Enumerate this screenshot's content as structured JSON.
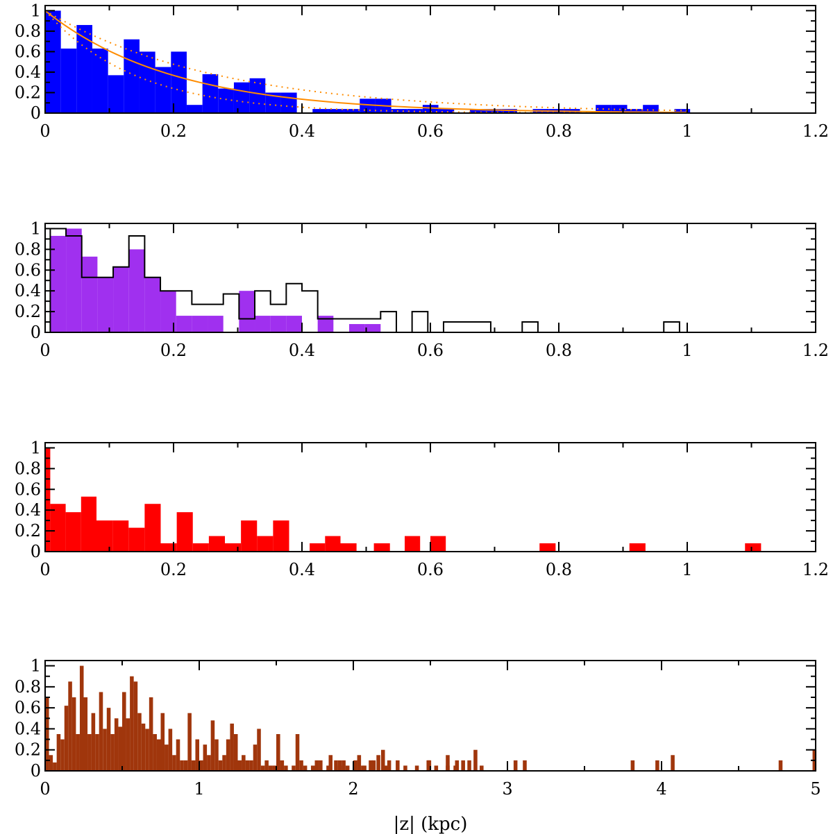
{
  "chart_data": [
    {
      "type": "bar",
      "panel": "panel-1",
      "xlim": [
        0,
        1.2
      ],
      "ylim": [
        0,
        1.05
      ],
      "xticks": [
        0,
        0.2,
        0.4,
        0.6,
        0.8,
        1,
        1.2
      ],
      "xticklabels": [
        "0",
        "0.2",
        "0.4",
        "0.6",
        "0.8",
        "1",
        "1.2"
      ],
      "yticks": [
        0,
        0.2,
        0.4,
        0.6,
        0.8,
        1
      ],
      "yticklabels": [
        "0",
        "0.2",
        "0.4",
        "0.6",
        "0.8",
        "1"
      ],
      "xlabel": "",
      "bin_width": 0.0245,
      "filled_series": {
        "name": "blue histogram",
        "color": "#0000ff",
        "x_start": 0,
        "values": [
          1.0,
          0.63,
          0.86,
          0.63,
          0.37,
          0.72,
          0.6,
          0.45,
          0.6,
          0.08,
          0.38,
          0.24,
          0.3,
          0.34,
          0.2,
          0.2,
          0.0,
          0.04,
          0.04,
          0.04,
          0.14,
          0.14,
          0.04,
          0.04,
          0.08,
          0.04,
          0.0,
          0.04,
          0.04,
          0.04,
          0.0,
          0.04,
          0.04,
          0.04,
          0.0,
          0.08,
          0.08,
          0.04,
          0.08,
          0.0,
          0.04
        ]
      },
      "curves": [
        {
          "name": "exponential fit",
          "style": "solid",
          "color": "#ff8c00",
          "x_range": [
            0,
            1
          ],
          "y0": 1.0,
          "scale_height": 0.2
        },
        {
          "name": "upper bound",
          "style": "dotted",
          "color": "#ff8c00",
          "x_range": [
            0,
            1
          ],
          "y0": 1.0,
          "scale_height": 0.27
        },
        {
          "name": "lower bound",
          "style": "dotted",
          "color": "#ff8c00",
          "x_range": [
            0,
            1
          ],
          "y0": 1.0,
          "scale_height": 0.14
        }
      ]
    },
    {
      "type": "bar",
      "panel": "panel-2",
      "xlim": [
        0,
        1.2
      ],
      "ylim": [
        0,
        1.05
      ],
      "xticks": [
        0,
        0.2,
        0.4,
        0.6,
        0.8,
        1,
        1.2
      ],
      "xticklabels": [
        "0",
        "0.2",
        "0.4",
        "0.6",
        "0.8",
        "1",
        "1.2"
      ],
      "yticks": [
        0,
        0.2,
        0.4,
        0.6,
        0.8,
        1
      ],
      "yticklabels": [
        "0",
        "0.2",
        "0.4",
        "0.6",
        "0.8",
        "1"
      ],
      "xlabel": "",
      "bin_width": 0.0245,
      "filled_series": {
        "name": "purple histogram",
        "color": "#a030ef",
        "x_start": 0.008,
        "values": [
          0.93,
          1.0,
          0.73,
          0.53,
          0.63,
          0.8,
          0.53,
          0.4,
          0.16,
          0.16,
          0.16,
          0.0,
          0.4,
          0.16,
          0.16,
          0.16,
          0.0,
          0.16,
          0.0,
          0.08,
          0.08,
          0.0
        ]
      },
      "outline_series": {
        "name": "black histogram",
        "color": "#000000",
        "x_start": 0.008,
        "values": [
          1.0,
          0.93,
          0.53,
          0.53,
          0.63,
          0.93,
          0.53,
          0.4,
          0.4,
          0.27,
          0.27,
          0.37,
          0.13,
          0.4,
          0.27,
          0.47,
          0.4,
          0.13,
          0.13,
          0.13,
          0.13,
          0.2,
          0.0,
          0.2,
          0.0,
          0.1,
          0.1,
          0.1,
          0.0,
          0.0,
          0.1,
          0.0,
          0.0,
          0.0,
          0.0,
          0.0,
          0.0,
          0.0,
          0.0,
          0.1
        ]
      }
    },
    {
      "type": "bar",
      "panel": "panel-3",
      "xlim": [
        0,
        1.2
      ],
      "ylim": [
        0,
        1.05
      ],
      "xticks": [
        0,
        0.2,
        0.4,
        0.6,
        0.8,
        1,
        1.2
      ],
      "xticklabels": [
        "0",
        "0.2",
        "0.4",
        "0.6",
        "0.8",
        "1",
        "1.2"
      ],
      "yticks": [
        0,
        0.2,
        0.4,
        0.6,
        0.8,
        1
      ],
      "yticklabels": [
        "0",
        "0.2",
        "0.4",
        "0.6",
        "0.8",
        "1"
      ],
      "xlabel": "",
      "bars": {
        "name": "red histogram",
        "color": "#ff0000",
        "x": [
          0,
          0.008,
          0.032,
          0.056,
          0.08,
          0.105,
          0.13,
          0.155,
          0.18,
          0.205,
          0.23,
          0.255,
          0.28,
          0.305,
          0.33,
          0.355,
          0.412,
          0.436,
          0.46,
          0.512,
          0.56,
          0.6,
          0.77,
          0.91,
          1.09
        ],
        "widths": [
          0.008,
          0.024,
          0.024,
          0.024,
          0.025,
          0.025,
          0.025,
          0.025,
          0.025,
          0.025,
          0.025,
          0.025,
          0.025,
          0.025,
          0.025,
          0.025,
          0.024,
          0.024,
          0.025,
          0.025,
          0.024,
          0.024,
          0.025,
          0.025,
          0.025
        ],
        "values": [
          1.0,
          0.46,
          0.38,
          0.53,
          0.3,
          0.3,
          0.23,
          0.46,
          0.08,
          0.38,
          0.08,
          0.15,
          0.08,
          0.3,
          0.15,
          0.3,
          0.08,
          0.15,
          0.08,
          0.08,
          0.15,
          0.15,
          0.08,
          0.08,
          0.08
        ]
      }
    },
    {
      "type": "bar",
      "panel": "panel-4",
      "xlim": [
        0,
        5
      ],
      "ylim": [
        0,
        1.05
      ],
      "xticks": [
        0,
        1,
        2,
        3,
        4,
        5
      ],
      "xticklabels": [
        "0",
        "1",
        "2",
        "3",
        "4",
        "5"
      ],
      "yticks": [
        0,
        0.2,
        0.4,
        0.6,
        0.8,
        1
      ],
      "yticklabels": [
        "0",
        "0.2",
        "0.4",
        "0.6",
        "0.8",
        "1"
      ],
      "xlabel": "|z| (kpc)",
      "bin_width": 0.025,
      "filled_series": {
        "name": "brown histogram",
        "color": "#a0360c",
        "x_start": 0,
        "values": [
          0.7,
          0.15,
          0.08,
          0.35,
          0.3,
          0.62,
          0.85,
          0.7,
          0.35,
          1.0,
          0.7,
          0.35,
          0.55,
          0.35,
          0.75,
          0.4,
          0.6,
          0.35,
          0.5,
          0.42,
          0.75,
          0.5,
          0.9,
          0.85,
          0.55,
          0.45,
          0.4,
          0.7,
          0.35,
          0.3,
          0.55,
          0.25,
          0.4,
          0.15,
          0.3,
          0.1,
          0.1,
          0.55,
          0.1,
          0.3,
          0.1,
          0.25,
          0.15,
          0.48,
          0.3,
          0.1,
          0.15,
          0.3,
          0.45,
          0.35,
          0.1,
          0.15,
          0.1,
          0.1,
          0.25,
          0.4,
          0.05,
          0.1,
          0.05,
          0.05,
          0.35,
          0.1,
          0.05,
          0.0,
          0.05,
          0.35,
          0.1,
          0.05,
          0.0,
          0.05,
          0.1,
          0.1,
          0.0,
          0.05,
          0.0,
          0.1,
          0.05,
          0.1,
          0.05,
          0.0,
          0.05,
          0.15,
          0.05,
          0.0,
          0.1,
          0.0,
          0.15,
          0.0,
          0.05,
          0.0,
          0.0,
          0.1,
          0.0,
          0.05,
          0.0,
          0.0,
          0.05,
          0.0,
          0.0,
          0.1,
          0.0,
          0.05,
          0.0,
          0.0,
          0.05,
          0.0,
          0.05,
          0.0,
          0.1,
          0.0,
          0.0,
          0.0,
          0.0,
          0.0,
          0.0,
          0.0,
          0.0,
          0.0,
          0.0,
          0.0,
          0.0,
          0.0,
          0.0,
          0.0,
          0.0,
          0.0,
          0.0,
          0.0,
          0.0,
          0.0,
          0.0,
          0.0,
          0.0,
          0.0,
          0.0,
          0.0,
          0.0,
          0.0,
          0.0,
          0.0,
          0.0,
          0.0,
          0.0,
          0.0,
          0.0,
          0.0,
          0.0,
          0.0,
          0.0,
          0.0,
          0.0,
          0.0,
          0.0,
          0.0,
          0.0,
          0.0,
          0.0,
          0.0,
          0.0,
          0.0,
          0.0,
          0.0,
          0.0,
          0.0,
          0.0,
          0.0,
          0.0,
          0.0,
          0.0,
          0.0,
          0.0,
          0.0,
          0.0,
          0.0,
          0.0,
          0.0,
          0.0,
          0.0,
          0.0,
          0.0,
          0.0,
          0.0,
          0.0,
          0.0,
          0.0,
          0.0,
          0.0,
          0.0,
          0.0,
          0.0,
          0.0,
          0.0,
          0.0,
          0.0,
          0.0,
          0.0,
          0.0,
          0.0
        ],
        "extra_bars": [
          {
            "x": 1.84,
            "value": 0.15
          },
          {
            "x": 1.9,
            "value": 0.1
          },
          {
            "x": 2.0,
            "value": 0.1
          },
          {
            "x": 2.06,
            "value": 0.05
          },
          {
            "x": 2.12,
            "value": 0.1
          },
          {
            "x": 2.18,
            "value": 0.2
          },
          {
            "x": 2.22,
            "value": 0.1
          },
          {
            "x": 2.48,
            "value": 0.1
          },
          {
            "x": 2.6,
            "value": 0.15
          },
          {
            "x": 2.66,
            "value": 0.1
          },
          {
            "x": 2.74,
            "value": 0.1
          },
          {
            "x": 2.78,
            "value": 0.2
          },
          {
            "x": 2.82,
            "value": 0.05
          },
          {
            "x": 3.04,
            "value": 0.1
          },
          {
            "x": 3.1,
            "value": 0.1
          },
          {
            "x": 3.8,
            "value": 0.1
          },
          {
            "x": 3.96,
            "value": 0.1
          },
          {
            "x": 4.06,
            "value": 0.15
          },
          {
            "x": 4.76,
            "value": 0.1
          },
          {
            "x": 4.98,
            "value": 0.2
          }
        ]
      }
    }
  ]
}
